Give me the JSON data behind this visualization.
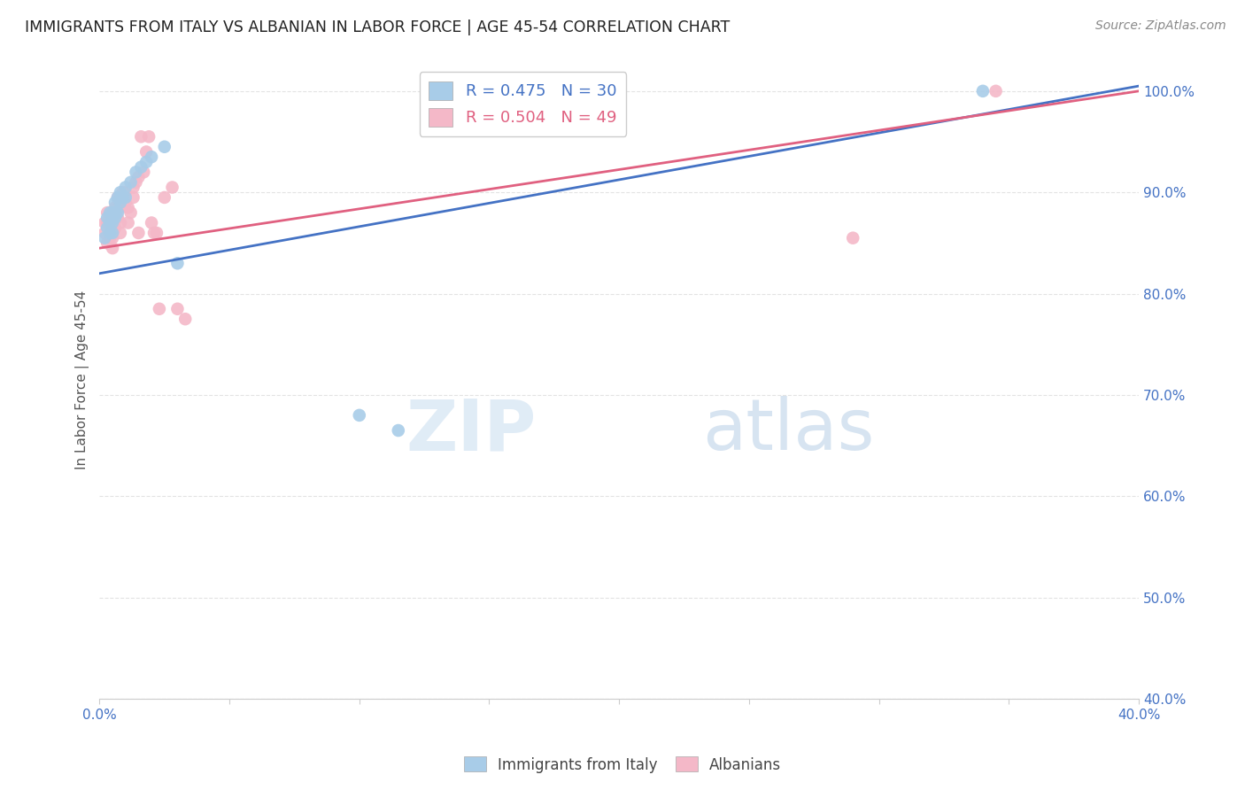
{
  "title": "IMMIGRANTS FROM ITALY VS ALBANIAN IN LABOR FORCE | AGE 45-54 CORRELATION CHART",
  "source": "Source: ZipAtlas.com",
  "xlabel": "",
  "ylabel": "In Labor Force | Age 45-54",
  "xlim": [
    0.0,
    0.4
  ],
  "ylim": [
    0.4,
    1.03
  ],
  "xticks": [
    0.0,
    0.05,
    0.1,
    0.15,
    0.2,
    0.25,
    0.3,
    0.35,
    0.4
  ],
  "yticks": [
    0.4,
    0.5,
    0.6,
    0.7,
    0.8,
    0.9,
    1.0
  ],
  "ytick_labels": [
    "40.0%",
    "50.0%",
    "60.0%",
    "70.0%",
    "80.0%",
    "90.0%",
    "100.0%"
  ],
  "xtick_labels": [
    "0.0%",
    "",
    "",
    "",
    "",
    "",
    "",
    "",
    "40.0%"
  ],
  "italy_R": 0.475,
  "italy_N": 30,
  "albanian_R": 0.504,
  "albanian_N": 49,
  "italy_color": "#a8cce8",
  "albanian_color": "#f4b8c8",
  "italy_line_color": "#4472c4",
  "albanian_line_color": "#e06080",
  "watermark_zip": "ZIP",
  "watermark_atlas": "atlas",
  "italy_x": [
    0.002,
    0.003,
    0.003,
    0.004,
    0.004,
    0.004,
    0.005,
    0.005,
    0.005,
    0.005,
    0.006,
    0.006,
    0.006,
    0.007,
    0.007,
    0.008,
    0.008,
    0.009,
    0.01,
    0.01,
    0.012,
    0.014,
    0.016,
    0.018,
    0.02,
    0.025,
    0.03,
    0.1,
    0.115,
    0.34
  ],
  "italy_y": [
    0.855,
    0.865,
    0.875,
    0.86,
    0.87,
    0.88,
    0.86,
    0.87,
    0.875,
    0.88,
    0.875,
    0.88,
    0.89,
    0.88,
    0.895,
    0.89,
    0.9,
    0.895,
    0.895,
    0.905,
    0.91,
    0.92,
    0.925,
    0.93,
    0.935,
    0.945,
    0.83,
    0.68,
    0.665,
    1.0
  ],
  "albanian_x": [
    0.002,
    0.002,
    0.003,
    0.003,
    0.003,
    0.004,
    0.004,
    0.004,
    0.005,
    0.005,
    0.005,
    0.005,
    0.005,
    0.006,
    0.006,
    0.006,
    0.007,
    0.007,
    0.007,
    0.008,
    0.008,
    0.008,
    0.008,
    0.009,
    0.009,
    0.01,
    0.01,
    0.011,
    0.011,
    0.012,
    0.013,
    0.013,
    0.014,
    0.015,
    0.015,
    0.016,
    0.017,
    0.018,
    0.019,
    0.02,
    0.021,
    0.022,
    0.023,
    0.025,
    0.028,
    0.03,
    0.033,
    0.29,
    0.345
  ],
  "albanian_y": [
    0.86,
    0.87,
    0.85,
    0.87,
    0.88,
    0.855,
    0.87,
    0.875,
    0.845,
    0.855,
    0.86,
    0.87,
    0.88,
    0.865,
    0.875,
    0.885,
    0.875,
    0.885,
    0.895,
    0.87,
    0.885,
    0.895,
    0.86,
    0.89,
    0.9,
    0.89,
    0.9,
    0.87,
    0.885,
    0.88,
    0.895,
    0.905,
    0.91,
    0.915,
    0.86,
    0.955,
    0.92,
    0.94,
    0.955,
    0.87,
    0.86,
    0.86,
    0.785,
    0.895,
    0.905,
    0.785,
    0.775,
    0.855,
    1.0
  ]
}
